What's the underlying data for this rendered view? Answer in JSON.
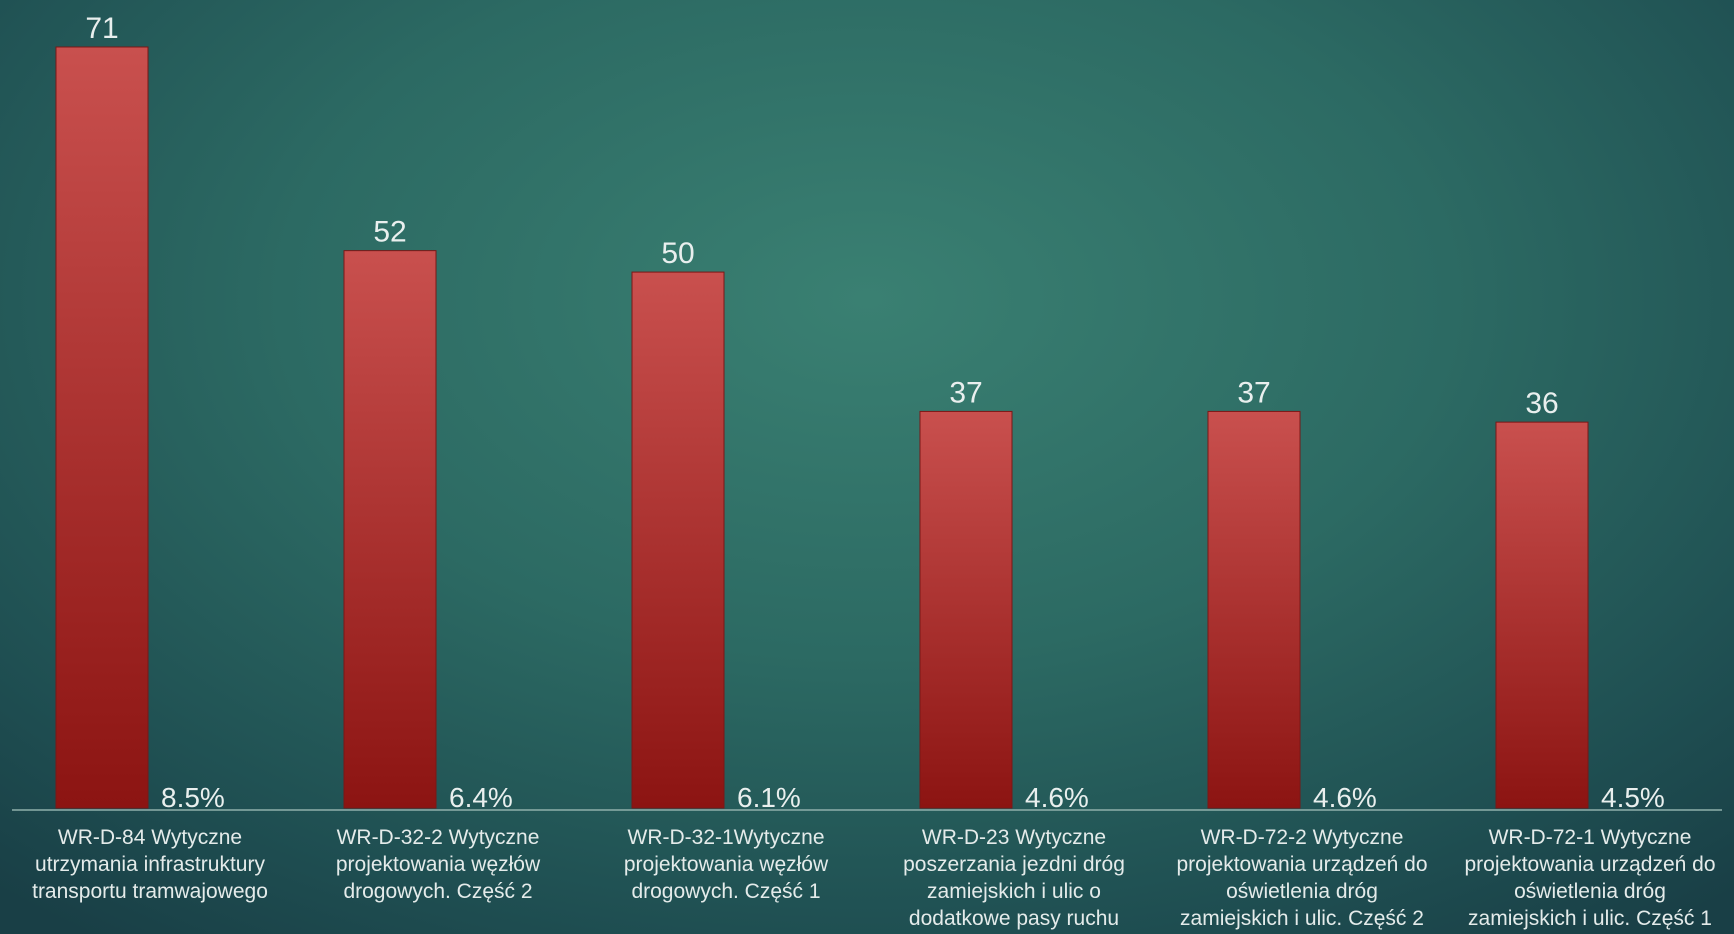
{
  "chart_data": {
    "type": "bar",
    "title": "",
    "xlabel": "",
    "ylabel": "",
    "ylim": [
      0,
      71
    ],
    "grid": false,
    "legend": "none",
    "bar_color_top": "#c9504e",
    "bar_color_bottom": "#8c1412",
    "categories": [
      [
        "WR-D-84 Wytyczne",
        "utrzymania infrastruktury",
        "transportu tramwajowego"
      ],
      [
        "WR-D-32-2 Wytyczne",
        "projektowania węzłów",
        "drogowych. Część 2"
      ],
      [
        "WR-D-32-1Wytyczne",
        "projektowania węzłów",
        "drogowych. Część 1"
      ],
      [
        "WR-D-23 Wytyczne",
        "poszerzania jezdni dróg",
        "zamiejskich i ulic o",
        "dodatkowe pasy ruchu"
      ],
      [
        "WR-D-72-2 Wytyczne",
        "projektowania urządzeń do",
        "oświetlenia dróg",
        "zamiejskich i ulic. Część 2"
      ],
      [
        "WR-D-72-1 Wytyczne",
        "projektowania urządzeń do",
        "oświetlenia dróg",
        "zamiejskich i ulic. Część 1"
      ]
    ],
    "values": [
      71,
      52,
      50,
      37,
      37,
      36
    ],
    "value_labels": [
      "71",
      "52",
      "50",
      "37",
      "37",
      "36"
    ],
    "percent_labels": [
      "8.5%",
      "6.4%",
      "6.1%",
      "4.6%",
      "4.6%",
      "4.5%"
    ]
  }
}
